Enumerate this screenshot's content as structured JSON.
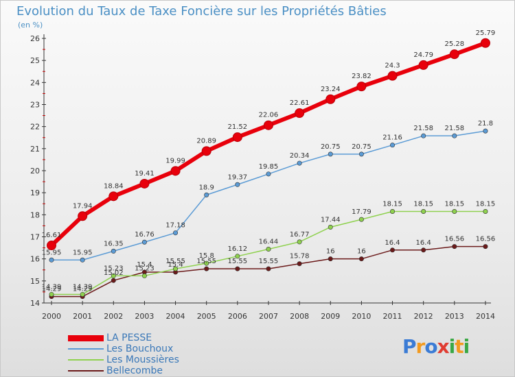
{
  "title": "Evolution du Taux de Taxe Foncière sur les Propriétés Bâties",
  "unit_label": "(en %)",
  "chart_data": {
    "type": "line",
    "title": "Evolution du Taux de Taxe Foncière sur les Propriétés Bâties",
    "ylabel": "(en %)",
    "xlabel": "",
    "x": [
      "2000",
      "2001",
      "2002",
      "2003",
      "2004",
      "2005",
      "2006",
      "2007",
      "2008",
      "2009",
      "2010",
      "2011",
      "2012",
      "2013",
      "2014"
    ],
    "ylim": [
      14,
      26
    ],
    "yticks": [
      "14",
      "15",
      "16",
      "17",
      "18",
      "19",
      "20",
      "21",
      "22",
      "23",
      "24",
      "25",
      "26"
    ],
    "grid": false,
    "legend_position": "bottom-left",
    "series": [
      {
        "name": "LA PESSE",
        "color": "#e8000b",
        "values": [
          16.61,
          17.94,
          18.84,
          19.41,
          19.99,
          20.89,
          21.52,
          22.06,
          22.61,
          23.24,
          23.82,
          24.3,
          24.79,
          25.28,
          25.79
        ],
        "labels": [
          "16.61",
          "17.94",
          "18.84",
          "19.41",
          "19.99",
          "20.89",
          "21.52",
          "22.06",
          "22.61",
          "23.24",
          "23.82",
          "24.3",
          "24.79",
          "25.28",
          "25.79"
        ]
      },
      {
        "name": "Les Bouchoux",
        "color": "#5b9bd5",
        "values": [
          15.95,
          15.95,
          16.35,
          16.76,
          17.18,
          18.9,
          19.37,
          19.85,
          20.34,
          20.75,
          20.75,
          21.16,
          21.58,
          21.58,
          21.8
        ],
        "labels": [
          "15.95",
          "15.95",
          "16.35",
          "16.76",
          "17.18",
          "18.9",
          "19.37",
          "19.85",
          "20.34",
          "20.75",
          "20.75",
          "21.16",
          "21.58",
          "21.58",
          "21.8"
        ]
      },
      {
        "name": "Les Moussières",
        "color": "#8fd14f",
        "values": [
          14.39,
          14.39,
          15.23,
          15.23,
          15.55,
          15.8,
          16.12,
          16.44,
          16.77,
          17.44,
          17.79,
          18.15,
          18.15,
          18.15,
          18.15
        ],
        "labels": [
          "14.39",
          "14.39",
          "15.23",
          "15.23",
          "15.55",
          "15.8",
          "16.12",
          "16.44",
          "16.77",
          "17.44",
          "17.79",
          "18.15",
          "18.15",
          "18.15",
          "18.15"
        ]
      },
      {
        "name": "Bellecombe",
        "color": "#6b1a1a",
        "values": [
          14.29,
          14.29,
          15.02,
          15.4,
          15.4,
          15.55,
          15.55,
          15.55,
          15.78,
          16,
          16,
          16.4,
          16.4,
          16.56,
          16.56
        ],
        "labels": [
          "14.29",
          "14.29",
          "15.02",
          "15.4",
          "15.4",
          "15.55",
          "15.55",
          "15.55",
          "15.78",
          "16",
          "16",
          "16.4",
          "16.4",
          "16.56",
          "16.56"
        ]
      }
    ]
  },
  "logo": {
    "letters": [
      "P",
      "r",
      "o",
      "x",
      "i",
      "t",
      "i"
    ],
    "colors": [
      "#3a7bd5",
      "#f29a1f",
      "#3a7bd5",
      "#e03c31",
      "#3aa845",
      "#f29a1f",
      "#3aa845"
    ]
  }
}
